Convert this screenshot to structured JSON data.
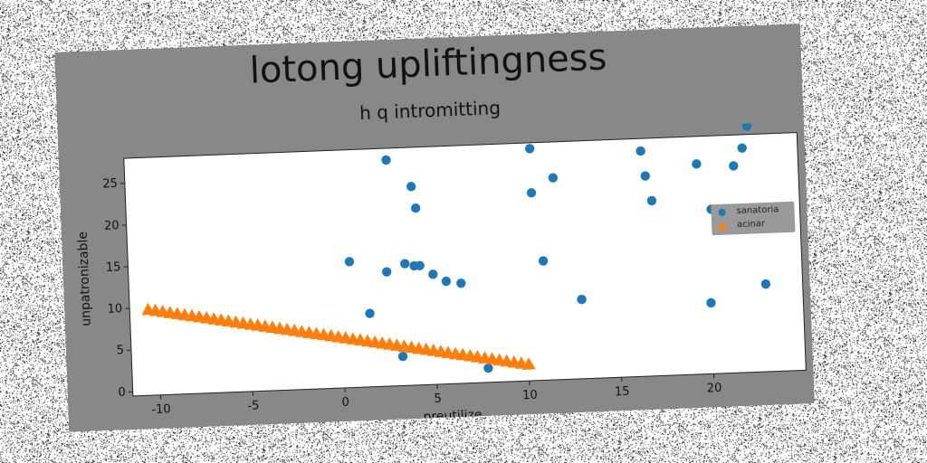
{
  "chart_data": {
    "type": "scatter",
    "title": "lotong upliftingness",
    "subtitle": "h q intromitting",
    "xlabel": "preutilize",
    "ylabel": "unpatronizable",
    "xlim": [
      -11.5,
      25
    ],
    "ylim": [
      -0.5,
      28
    ],
    "xticks": [
      -10,
      -5,
      0,
      5,
      10,
      15,
      20
    ],
    "yticks": [
      0,
      5,
      10,
      15,
      20,
      25
    ],
    "legend_position": "center-right",
    "series": [
      {
        "name": "sanatoria",
        "color": "#1f77b4",
        "marker": "circle",
        "x": [
          0.5,
          1.5,
          2.5,
          2.7,
          3.2,
          3.5,
          4.0,
          4.0,
          4.2,
          4.3,
          5.0,
          5.7,
          6.5,
          7.8,
          10.5,
          10.5,
          11.0,
          11.7,
          13.0,
          16.5,
          16.7,
          17.0,
          19.5,
          20.0,
          20.2,
          21.5,
          22.0,
          22.3,
          23.0
        ],
        "y": [
          14.6,
          8.3,
          13.2,
          26.6,
          3.0,
          14.1,
          13.8,
          23.3,
          20.7,
          13.8,
          12.7,
          11.8,
          11.5,
          1.2,
          27.3,
          22.0,
          13.8,
          23.7,
          9.0,
          26.5,
          23.5,
          20.5,
          24.7,
          8.0,
          19.2,
          24.3,
          26.4,
          29.0,
          10.0
        ]
      },
      {
        "name": "acinar",
        "color": "#ff7f0e",
        "marker": "triangle",
        "x_range": [
          -10.5,
          10.0
        ],
        "y_range": [
          9.8,
          1.5
        ],
        "count": 53
      }
    ]
  }
}
